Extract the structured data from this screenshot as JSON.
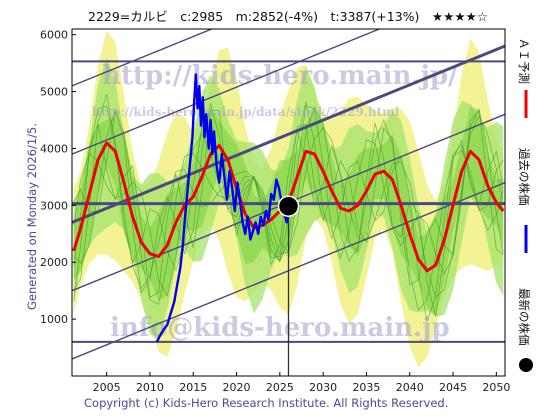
{
  "header": {
    "text": "2229=カルビ　c:2985　m:2852(-4%)　t:3387(+13%)　★★★★☆"
  },
  "side_text": "Generated on Monday 2026/1/5.",
  "footer": "Copyright (c) Kids-Hero Research Institute. All Rights Reserved.",
  "watermarks": {
    "top": "http://kids-hero.main.jp/",
    "small": "http://kids-hero.main.jp/data/stock/2229.html",
    "bottom": "info@kids-hero.main.jp"
  },
  "legend": {
    "ai_forecast": "ＡＩ予測",
    "past_price": "過去の株価",
    "latest_price": "最新の株価"
  },
  "colors": {
    "ai_forecast": "#ee0000",
    "past_price": "#0000ee",
    "latest_price": "#000000",
    "band_fill": "#a6e36b",
    "band_fill_light": "#f2f28a",
    "channel_line": "#4a4a80"
  },
  "chart_data": {
    "type": "line",
    "xlim": [
      2001,
      2051
    ],
    "ylim": [
      0,
      6100
    ],
    "x_ticks": [
      2005,
      2010,
      2015,
      2020,
      2025,
      2030,
      2035,
      2040,
      2045,
      2050
    ],
    "y_ticks": [
      1000,
      2000,
      3000,
      4000,
      5000,
      6000
    ],
    "current": {
      "x": 2026.0,
      "y": 2985
    },
    "current_price": 2985,
    "horizontal_levels": [
      600,
      3030,
      5530
    ],
    "series": [
      {
        "name": "ＡＩ予測",
        "color": "#ee0000",
        "points": [
          [
            2001.2,
            2200
          ],
          [
            2002,
            2600
          ],
          [
            2003,
            3200
          ],
          [
            2004,
            3800
          ],
          [
            2005,
            4100
          ],
          [
            2006,
            3950
          ],
          [
            2007,
            3400
          ],
          [
            2008,
            2800
          ],
          [
            2009,
            2350
          ],
          [
            2010,
            2150
          ],
          [
            2011,
            2100
          ],
          [
            2012,
            2300
          ],
          [
            2013,
            2700
          ],
          [
            2014,
            3000
          ],
          [
            2015,
            3150
          ],
          [
            2016,
            3500
          ],
          [
            2017,
            3900
          ],
          [
            2018,
            4050
          ],
          [
            2019,
            3800
          ],
          [
            2020,
            3300
          ],
          [
            2021,
            2850
          ],
          [
            2022,
            2600
          ],
          [
            2023,
            2650
          ],
          [
            2024,
            2750
          ],
          [
            2025,
            2900
          ],
          [
            2026,
            3050
          ],
          [
            2027,
            3500
          ],
          [
            2028,
            3950
          ],
          [
            2029,
            3900
          ],
          [
            2030,
            3600
          ],
          [
            2031,
            3250
          ],
          [
            2032,
            2950
          ],
          [
            2033,
            2900
          ],
          [
            2034,
            3000
          ],
          [
            2035,
            3250
          ],
          [
            2036,
            3550
          ],
          [
            2037,
            3600
          ],
          [
            2038,
            3450
          ],
          [
            2039,
            3000
          ],
          [
            2040,
            2500
          ],
          [
            2041,
            2050
          ],
          [
            2042,
            1850
          ],
          [
            2043,
            1950
          ],
          [
            2044,
            2400
          ],
          [
            2045,
            3000
          ],
          [
            2046,
            3600
          ],
          [
            2047,
            3950
          ],
          [
            2048,
            3800
          ],
          [
            2049,
            3350
          ],
          [
            2050,
            3050
          ],
          [
            2050.8,
            2900
          ]
        ]
      },
      {
        "name": "過去の株価",
        "color": "#0000ee",
        "points": [
          [
            2010.8,
            600
          ],
          [
            2011.2,
            720
          ],
          [
            2011.6,
            820
          ],
          [
            2012.0,
            900
          ],
          [
            2012.4,
            1100
          ],
          [
            2012.8,
            1300
          ],
          [
            2013.2,
            1650
          ],
          [
            2013.5,
            1900
          ],
          [
            2013.8,
            2300
          ],
          [
            2014.0,
            2700
          ],
          [
            2014.3,
            3200
          ],
          [
            2014.6,
            3700
          ],
          [
            2014.9,
            4200
          ],
          [
            2015.1,
            4800
          ],
          [
            2015.3,
            5300
          ],
          [
            2015.5,
            4700
          ],
          [
            2015.7,
            5100
          ],
          [
            2015.9,
            4400
          ],
          [
            2016.1,
            4900
          ],
          [
            2016.3,
            4200
          ],
          [
            2016.5,
            4600
          ],
          [
            2016.8,
            4000
          ],
          [
            2017.0,
            4500
          ],
          [
            2017.2,
            3900
          ],
          [
            2017.4,
            4300
          ],
          [
            2017.7,
            3700
          ],
          [
            2018.0,
            3400
          ],
          [
            2018.3,
            3900
          ],
          [
            2018.6,
            3500
          ],
          [
            2018.9,
            3100
          ],
          [
            2019.2,
            3600
          ],
          [
            2019.5,
            3300
          ],
          [
            2019.8,
            2900
          ],
          [
            2020.1,
            3400
          ],
          [
            2020.4,
            3100
          ],
          [
            2020.7,
            2700
          ],
          [
            2021.0,
            2500
          ],
          [
            2021.3,
            2800
          ],
          [
            2021.6,
            2400
          ],
          [
            2021.9,
            2550
          ],
          [
            2022.2,
            2700
          ],
          [
            2022.5,
            2500
          ],
          [
            2022.8,
            2800
          ],
          [
            2023.1,
            2650
          ],
          [
            2023.4,
            2900
          ],
          [
            2023.7,
            2750
          ],
          [
            2024.0,
            3200
          ],
          [
            2024.3,
            3100
          ],
          [
            2024.6,
            3450
          ],
          [
            2024.9,
            3300
          ],
          [
            2025.2,
            3050
          ],
          [
            2025.5,
            2850
          ],
          [
            2025.8,
            2700
          ],
          [
            2026.0,
            2985
          ]
        ]
      }
    ]
  }
}
